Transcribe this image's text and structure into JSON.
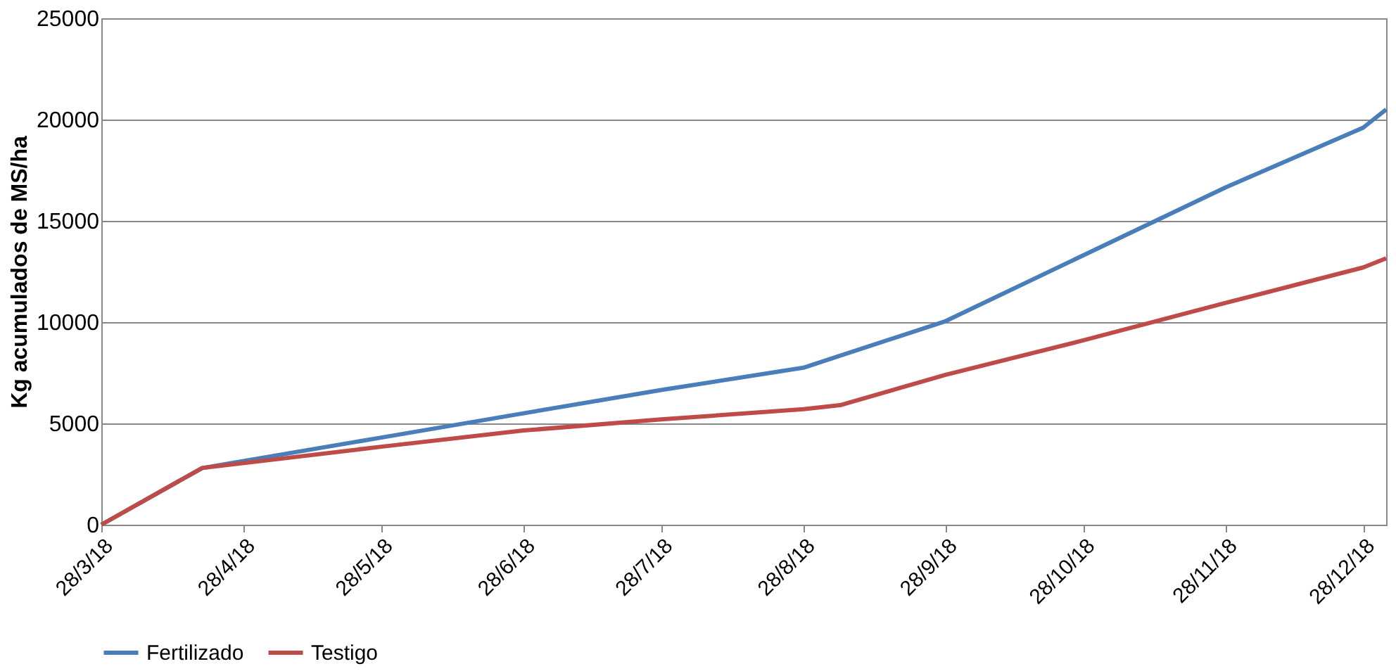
{
  "chart_data": {
    "type": "line",
    "ylabel": "Kg acumulados de MS/ha",
    "xlim": [
      "2018-03-28",
      "2019-01-02"
    ],
    "xticks": [
      {
        "value": "2018-03-28",
        "label": "28/3/18"
      },
      {
        "value": "2018-04-28",
        "label": "28/4/18"
      },
      {
        "value": "2018-05-28",
        "label": "28/5/18"
      },
      {
        "value": "2018-06-28",
        "label": "28/6/18"
      },
      {
        "value": "2018-07-28",
        "label": "28/7/18"
      },
      {
        "value": "2018-08-28",
        "label": "28/8/18"
      },
      {
        "value": "2018-09-28",
        "label": "28/9/18"
      },
      {
        "value": "2018-10-28",
        "label": "28/10/18"
      },
      {
        "value": "2018-11-28",
        "label": "28/11/18"
      },
      {
        "value": "2018-12-28",
        "label": "28/12/18"
      }
    ],
    "ylim": [
      0,
      25000
    ],
    "yticks": [
      0,
      5000,
      10000,
      15000,
      20000,
      25000
    ],
    "grid": "y",
    "legend": "bottom",
    "line_style": "solid",
    "marker": "none",
    "series": [
      {
        "name": "Fertilizado",
        "color": "#4a7ebb",
        "x": [
          "2018-03-28",
          "2018-04-19",
          "2018-05-28",
          "2018-06-28",
          "2018-07-28",
          "2018-08-28",
          "2018-09-28",
          "2018-10-28",
          "2018-11-28",
          "2018-12-28",
          "2019-01-02"
        ],
        "values": [
          0,
          2800,
          4300,
          5500,
          6650,
          7750,
          10050,
          13300,
          16650,
          19600,
          20500
        ]
      },
      {
        "name": "Testigo",
        "color": "#be4b48",
        "x": [
          "2018-03-28",
          "2018-04-19",
          "2018-05-28",
          "2018-06-28",
          "2018-07-28",
          "2018-08-28",
          "2018-09-05",
          "2018-09-28",
          "2018-10-28",
          "2018-11-28",
          "2018-12-28",
          "2019-01-02"
        ],
        "values": [
          0,
          2800,
          3850,
          4650,
          5200,
          5700,
          5900,
          7400,
          9100,
          10950,
          12700,
          13150
        ]
      }
    ]
  }
}
